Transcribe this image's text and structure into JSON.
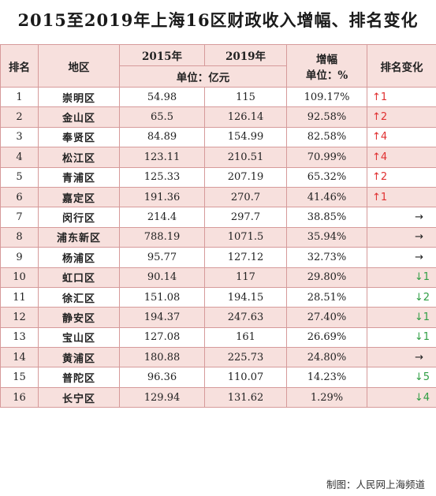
{
  "title": "2015至2019年上海16区财政收入增幅、排名变化",
  "headers": {
    "rank": "排名",
    "district": "地区",
    "y2015": "2015年",
    "y2019": "2019年",
    "unit": "单位：亿元",
    "growth": "增幅",
    "growth_unit": "单位：%",
    "change": "排名变化"
  },
  "rows": [
    {
      "rank": "1",
      "district": "崇明区",
      "y2015": "54.98",
      "y2019": "115",
      "growth": "109.17%",
      "change": "↑1",
      "dir": "up"
    },
    {
      "rank": "2",
      "district": "金山区",
      "y2015": "65.5",
      "y2019": "126.14",
      "growth": "92.58%",
      "change": "↑2",
      "dir": "up"
    },
    {
      "rank": "3",
      "district": "奉贤区",
      "y2015": "84.89",
      "y2019": "154.99",
      "growth": "82.58%",
      "change": "↑4",
      "dir": "up"
    },
    {
      "rank": "4",
      "district": "松江区",
      "y2015": "123.11",
      "y2019": "210.51",
      "growth": "70.99%",
      "change": "↑4",
      "dir": "up"
    },
    {
      "rank": "5",
      "district": "青浦区",
      "y2015": "125.33",
      "y2019": "207.19",
      "growth": "65.32%",
      "change": "↑2",
      "dir": "up"
    },
    {
      "rank": "6",
      "district": "嘉定区",
      "y2015": "191.36",
      "y2019": "270.7",
      "growth": "41.46%",
      "change": "↑1",
      "dir": "up"
    },
    {
      "rank": "7",
      "district": "闵行区",
      "y2015": "214.4",
      "y2019": "297.7",
      "growth": "38.85%",
      "change": "→",
      "dir": "flat"
    },
    {
      "rank": "8",
      "district": "浦东新区",
      "y2015": "788.19",
      "y2019": "1071.5",
      "growth": "35.94%",
      "change": "→",
      "dir": "flat"
    },
    {
      "rank": "9",
      "district": "杨浦区",
      "y2015": "95.77",
      "y2019": "127.12",
      "growth": "32.73%",
      "change": "→",
      "dir": "flat"
    },
    {
      "rank": "10",
      "district": "虹口区",
      "y2015": "90.14",
      "y2019": "117",
      "growth": "29.80%",
      "change": "↓1",
      "dir": "down"
    },
    {
      "rank": "11",
      "district": "徐汇区",
      "y2015": "151.08",
      "y2019": "194.15",
      "growth": "28.51%",
      "change": "↓2",
      "dir": "down"
    },
    {
      "rank": "12",
      "district": "静安区",
      "y2015": "194.37",
      "y2019": "247.63",
      "growth": "27.40%",
      "change": "↓1",
      "dir": "down"
    },
    {
      "rank": "13",
      "district": "宝山区",
      "y2015": "127.08",
      "y2019": "161",
      "growth": "26.69%",
      "change": "↓1",
      "dir": "down"
    },
    {
      "rank": "14",
      "district": "黄浦区",
      "y2015": "180.88",
      "y2019": "225.73",
      "growth": "24.80%",
      "change": "→",
      "dir": "flat"
    },
    {
      "rank": "15",
      "district": "普陀区",
      "y2015": "96.36",
      "y2019": "110.07",
      "growth": "14.23%",
      "change": "↓5",
      "dir": "down"
    },
    {
      "rank": "16",
      "district": "长宁区",
      "y2015": "129.94",
      "y2019": "131.62",
      "growth": "1.29%",
      "change": "↓4",
      "dir": "down"
    }
  ],
  "footer": "制图：人民网上海频道",
  "colors": {
    "header_bg": "#f7e0dd",
    "border": "#d69a9a",
    "up": "#e03131",
    "down": "#2f9e44"
  }
}
